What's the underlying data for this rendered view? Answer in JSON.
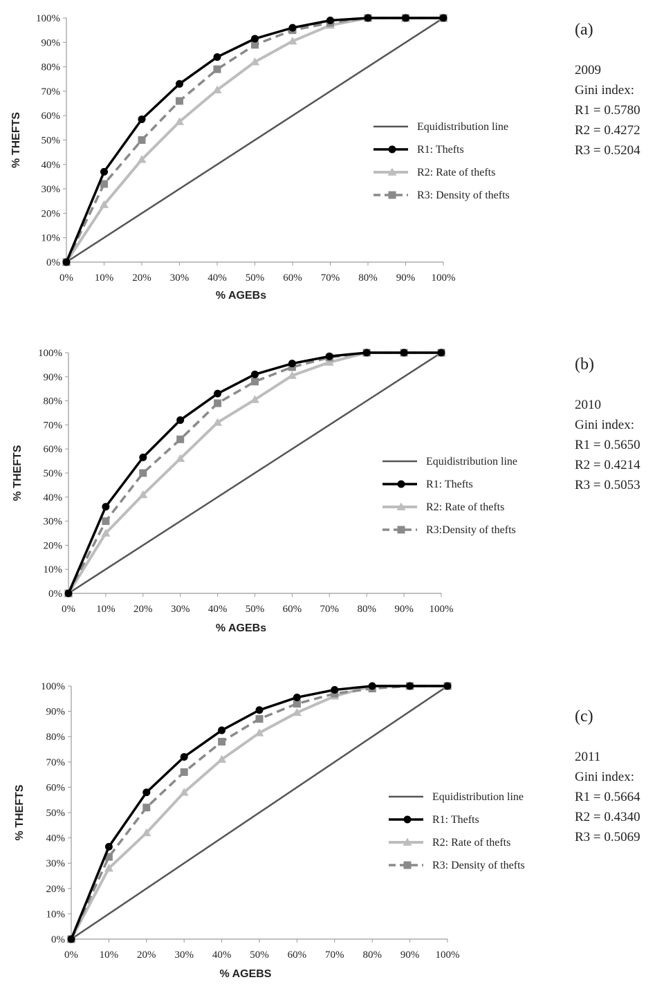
{
  "colors": {
    "equidistribution": "#555555",
    "r1": "#000000",
    "r2": "#bdbdbd",
    "r3": "#8a8a8a",
    "axis": "#9a9a9a",
    "text": "#222222"
  },
  "chart_data": [
    {
      "type": "line",
      "panel_label": "(a)",
      "year": "2009",
      "gini_title": "Gini index:",
      "gini_values": [
        "R1 = 0.5780",
        "R2 = 0.4272",
        "R3 = 0.5204"
      ],
      "xlabel": "% AGEBs",
      "ylabel": "% THEFTS",
      "x_tick_labels": [
        "0%",
        "10%",
        "20%",
        "30%",
        "40%",
        "50%",
        "60%",
        "70%",
        "80%",
        "90%",
        "100%"
      ],
      "y_tick_labels": [
        "0%",
        "10%",
        "20%",
        "30%",
        "40%",
        "50%",
        "60%",
        "70%",
        "80%",
        "90%",
        "100%"
      ],
      "x": [
        0,
        10,
        20,
        30,
        40,
        50,
        60,
        70,
        80,
        90,
        100
      ],
      "xlim": [
        0,
        100
      ],
      "ylim": [
        0,
        100
      ],
      "grid": false,
      "legend_position": "right",
      "series": [
        {
          "key": "eq",
          "name": "Equidistribution line",
          "values": [
            0,
            10,
            20,
            30,
            40,
            50,
            60,
            70,
            80,
            90,
            100
          ]
        },
        {
          "key": "r1",
          "name": "R1: Thefts",
          "values": [
            0,
            37,
            58.5,
            73,
            84,
            91.5,
            96,
            99,
            100,
            100,
            100
          ]
        },
        {
          "key": "r2",
          "name": "R2: Rate of thefts",
          "values": [
            0,
            23.5,
            42,
            57.5,
            70.5,
            82,
            90.5,
            97,
            100,
            100,
            100
          ]
        },
        {
          "key": "r3",
          "name": "R3: Density of thefts",
          "values": [
            0,
            32,
            50,
            66,
            79,
            89,
            95,
            98,
            100,
            100,
            100
          ]
        }
      ]
    },
    {
      "type": "line",
      "panel_label": "(b)",
      "year": "2010",
      "gini_title": "Gini index:",
      "gini_values": [
        "R1 = 0.5650",
        "R2 = 0.4214",
        "R3 = 0.5053"
      ],
      "xlabel": "% AGEBs",
      "ylabel": "% THEFTS",
      "x_tick_labels": [
        "0%",
        "10%",
        "20%",
        "30%",
        "40%",
        "50%",
        "60%",
        "70%",
        "80%",
        "90%",
        "100%"
      ],
      "y_tick_labels": [
        "0%",
        "10%",
        "20%",
        "30%",
        "40%",
        "50%",
        "60%",
        "70%",
        "80%",
        "90%",
        "100%"
      ],
      "x": [
        0,
        10,
        20,
        30,
        40,
        50,
        60,
        70,
        80,
        90,
        100
      ],
      "xlim": [
        0,
        100
      ],
      "ylim": [
        0,
        100
      ],
      "grid": false,
      "legend_position": "right",
      "series": [
        {
          "key": "eq",
          "name": "Equidistribution line",
          "values": [
            0,
            10,
            20,
            30,
            40,
            50,
            60,
            70,
            80,
            90,
            100
          ]
        },
        {
          "key": "r1",
          "name": "R1: Thefts",
          "values": [
            0,
            36,
            56.5,
            72,
            83,
            91,
            95.5,
            98.5,
            100,
            100,
            100
          ]
        },
        {
          "key": "r2",
          "name": "R2: Rate of thefts",
          "values": [
            0,
            25,
            41,
            56,
            71,
            80.5,
            90.5,
            96,
            100,
            100,
            100
          ]
        },
        {
          "key": "r3",
          "name": "R3:Density of thefts",
          "values": [
            0,
            30,
            50,
            64,
            79,
            88,
            94,
            98,
            100,
            100,
            100
          ]
        }
      ]
    },
    {
      "type": "line",
      "panel_label": "(c)",
      "year": "2011",
      "gini_title": "Gini index:",
      "gini_values": [
        "R1 = 0.5664",
        "R2 = 0.4340",
        "R3 = 0.5069"
      ],
      "xlabel": "% AGEBS",
      "ylabel": "% THEFTS",
      "x_tick_labels": [
        "0%",
        "10%",
        "20%",
        "30%",
        "40%",
        "50%",
        "60%",
        "70%",
        "80%",
        "90%",
        "100%"
      ],
      "y_tick_labels": [
        "0%",
        "10%",
        "20%",
        "30%",
        "40%",
        "50%",
        "60%",
        "70%",
        "80%",
        "90%",
        "100%"
      ],
      "x": [
        0,
        10,
        20,
        30,
        40,
        50,
        60,
        70,
        80,
        90,
        100
      ],
      "xlim": [
        0,
        100
      ],
      "ylim": [
        0,
        100
      ],
      "grid": false,
      "legend_position": "right",
      "series": [
        {
          "key": "eq",
          "name": "Equidistribution line",
          "values": [
            0,
            10,
            20,
            30,
            40,
            50,
            60,
            70,
            80,
            90,
            100
          ]
        },
        {
          "key": "r1",
          "name": "R1: Thefts",
          "values": [
            0,
            36.5,
            58,
            72,
            82.5,
            90.5,
            95.5,
            98.5,
            100,
            100,
            100
          ]
        },
        {
          "key": "r2",
          "name": "R2: Rate of thefts",
          "values": [
            0,
            28,
            42,
            58,
            71,
            81.5,
            89.5,
            96,
            100,
            100,
            100
          ]
        },
        {
          "key": "r3",
          "name": "R3: Density of thefts",
          "values": [
            0,
            32.5,
            52,
            66,
            78,
            87,
            93,
            97,
            99,
            100,
            100
          ]
        }
      ]
    }
  ]
}
